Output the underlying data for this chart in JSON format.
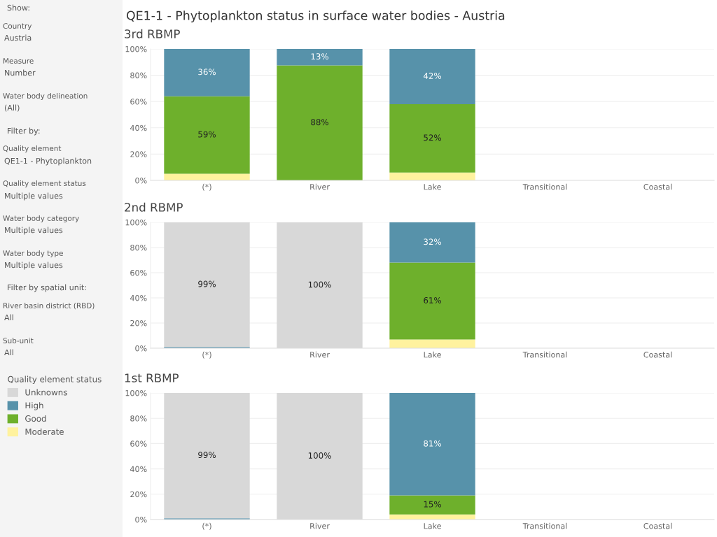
{
  "chart_data": [
    {
      "type": "other",
      "annotations": [
        "Show:",
        "Country",
        "Austria",
        "Measure",
        "Number",
        "Water body delineation",
        "(All)",
        "Filter by:",
        "Quality element",
        "QE1-1 - Phytoplankton",
        "Quality element status",
        "Multiple values",
        "Water body category",
        "Multiple values",
        "Water body type",
        "Multiple values",
        "Filter by spatial unit:",
        "River basin district (RBD)",
        "All",
        "Sub-unit",
        "All"
      ]
    },
    {
      "type": "bar",
      "stacked": true,
      "title": "QE1-1 - Phytoplankton status in surface water bodies - Austria",
      "subtitle": "3rd RBMP",
      "legend_title": "Quality element status",
      "legend": "left",
      "grid": "y",
      "categories": [
        "(*)",
        "River",
        "Lake",
        "Transitional",
        "Coastal"
      ],
      "ylim": [
        0,
        100
      ],
      "yticks": [
        {
          "value": 0,
          "label": "0%"
        },
        {
          "value": 20,
          "label": "20%"
        },
        {
          "value": 40,
          "label": "40%"
        },
        {
          "value": 60,
          "label": "60%"
        },
        {
          "value": 80,
          "label": "80%"
        },
        {
          "value": 100,
          "label": "100%"
        }
      ],
      "series": [
        {
          "name": "Moderate",
          "color": "#fff29e",
          "values": [
            5,
            0,
            6,
            null,
            null
          ],
          "value_labels": [
            null,
            null,
            null,
            null,
            null
          ]
        },
        {
          "name": "Good",
          "color": "#6eb02c",
          "values": [
            59,
            87.5,
            52,
            null,
            null
          ],
          "value_labels": [
            "59%",
            "88%",
            "52%",
            null,
            null
          ]
        },
        {
          "name": "High",
          "color": "#5792aa",
          "values": [
            36,
            12.5,
            42,
            null,
            null
          ],
          "value_labels": [
            "36%",
            "13%",
            "42%",
            null,
            null
          ]
        },
        {
          "name": "Unknowns",
          "color": "#d8d8d8",
          "values": [
            0,
            0,
            0,
            null,
            null
          ],
          "value_labels": [
            null,
            null,
            null,
            null,
            null
          ]
        }
      ]
    },
    {
      "type": "bar",
      "stacked": true,
      "title": "2nd RBMP",
      "legend": false,
      "grid": "y",
      "categories": [
        "(*)",
        "River",
        "Lake",
        "Transitional",
        "Coastal"
      ],
      "ylim": [
        0,
        100
      ],
      "yticks": [
        {
          "value": 0,
          "label": "0%"
        },
        {
          "value": 20,
          "label": "20%"
        },
        {
          "value": 40,
          "label": "40%"
        },
        {
          "value": 60,
          "label": "60%"
        },
        {
          "value": 80,
          "label": "80%"
        },
        {
          "value": 100,
          "label": "100%"
        }
      ],
      "series": [
        {
          "color": "#fff29e",
          "values": [
            0,
            0,
            7,
            null,
            null
          ],
          "value_labels": [
            null,
            null,
            null,
            null,
            null
          ]
        },
        {
          "color": "#6eb02c",
          "values": [
            0,
            0,
            61,
            null,
            null
          ],
          "value_labels": [
            null,
            null,
            "61%",
            null,
            null
          ]
        },
        {
          "color": "#5792aa",
          "values": [
            1,
            0,
            32,
            null,
            null
          ],
          "value_labels": [
            null,
            null,
            "32%",
            null,
            null
          ]
        },
        {
          "color": "#d8d8d8",
          "values": [
            99,
            100,
            0,
            null,
            null
          ],
          "value_labels": [
            "99%",
            "100%",
            null,
            null,
            null
          ]
        }
      ]
    },
    {
      "type": "bar",
      "stacked": true,
      "title": "1st RBMP",
      "legend": false,
      "grid": "y",
      "categories": [
        "(*)",
        "River",
        "Lake",
        "Transitional",
        "Coastal"
      ],
      "ylim": [
        0,
        100
      ],
      "yticks": [
        {
          "value": 0,
          "label": "0%"
        },
        {
          "value": 20,
          "label": "20%"
        },
        {
          "value": 40,
          "label": "40%"
        },
        {
          "value": 60,
          "label": "60%"
        },
        {
          "value": 80,
          "label": "80%"
        },
        {
          "value": 100,
          "label": "100%"
        }
      ],
      "series": [
        {
          "color": "#fff29e",
          "values": [
            0,
            0,
            4,
            null,
            null
          ],
          "value_labels": [
            null,
            null,
            null,
            null,
            null
          ]
        },
        {
          "color": "#6eb02c",
          "values": [
            0,
            0,
            15,
            null,
            null
          ],
          "value_labels": [
            null,
            null,
            "15%",
            null,
            null
          ]
        },
        {
          "color": "#5792aa",
          "values": [
            1,
            0,
            81,
            null,
            null
          ],
          "value_labels": [
            null,
            null,
            "81%",
            null,
            null
          ]
        },
        {
          "color": "#d8d8d8",
          "values": [
            99,
            100,
            0,
            null,
            null
          ],
          "value_labels": [
            "99%",
            "100%",
            null,
            null,
            null
          ]
        }
      ]
    }
  ]
}
